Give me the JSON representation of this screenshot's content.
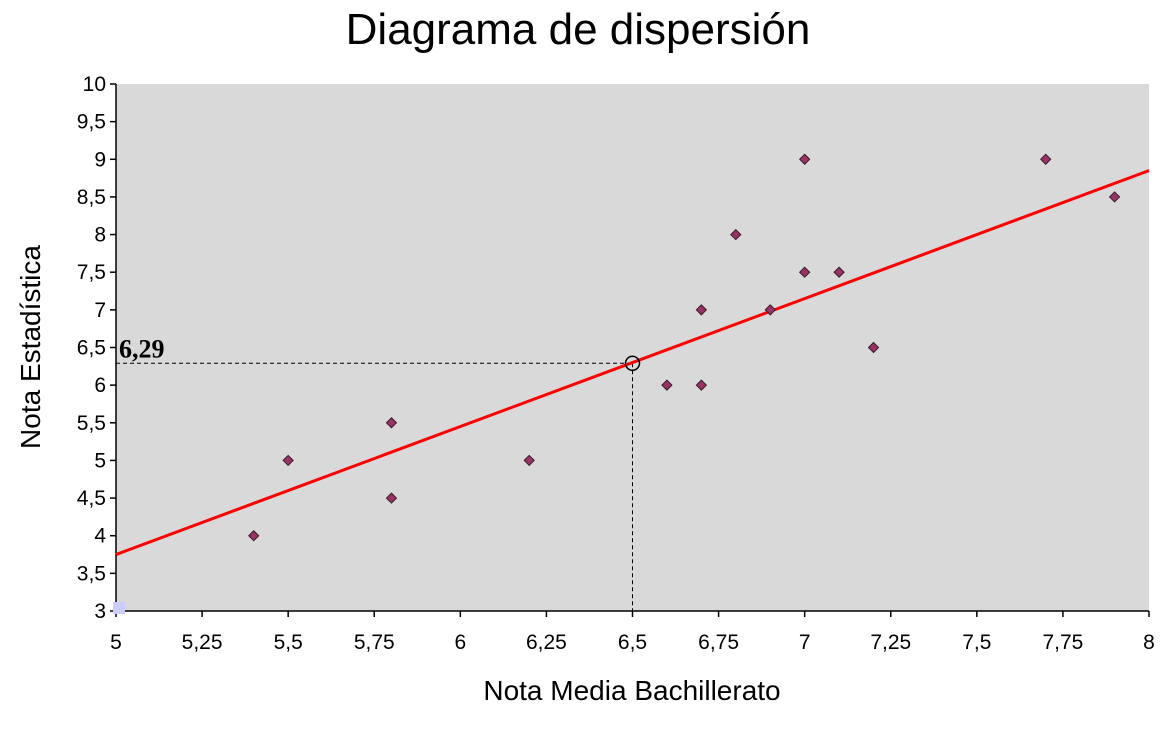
{
  "chart_data": {
    "type": "scatter",
    "title": "Diagrama de dispersión",
    "xlabel": "Nota Media Bachillerato",
    "ylabel": "Nota Estadística",
    "xlim": [
      5,
      8
    ],
    "ylim": [
      3,
      10
    ],
    "x_ticks": [
      "5",
      "5,25",
      "5,5",
      "5,75",
      "6",
      "6,25",
      "6,5",
      "6,75",
      "7",
      "7,25",
      "7,5",
      "7,75",
      "8"
    ],
    "y_ticks": [
      "3",
      "3,5",
      "4",
      "4,5",
      "5",
      "5,5",
      "6",
      "6,5",
      "7",
      "7,5",
      "8",
      "8,5",
      "9",
      "9,5",
      "10"
    ],
    "points": [
      {
        "x": 5.4,
        "y": 4
      },
      {
        "x": 5.5,
        "y": 5
      },
      {
        "x": 5.8,
        "y": 5.5
      },
      {
        "x": 5.8,
        "y": 4.5
      },
      {
        "x": 6.2,
        "y": 5
      },
      {
        "x": 6.6,
        "y": 6
      },
      {
        "x": 6.7,
        "y": 7
      },
      {
        "x": 6.7,
        "y": 6
      },
      {
        "x": 6.8,
        "y": 8
      },
      {
        "x": 6.9,
        "y": 7
      },
      {
        "x": 7.0,
        "y": 9
      },
      {
        "x": 7.0,
        "y": 7.5
      },
      {
        "x": 7.1,
        "y": 7.5
      },
      {
        "x": 7.2,
        "y": 6.5
      },
      {
        "x": 7.7,
        "y": 9
      },
      {
        "x": 7.9,
        "y": 8.5
      }
    ],
    "regression_line": {
      "x": [
        5,
        8
      ],
      "y": [
        3.75,
        8.85
      ],
      "color": "#ff0000"
    },
    "highlight_point": {
      "x": 6.5,
      "y": 6.29,
      "label": "6,29"
    },
    "marker_color": "#993366",
    "plot_background": "#d9d9d9",
    "grid": false
  }
}
